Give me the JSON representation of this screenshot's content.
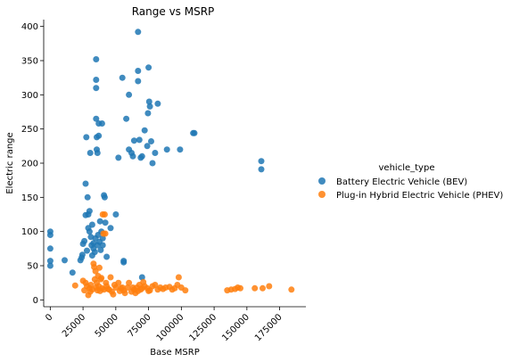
{
  "chart_data": {
    "type": "scatter",
    "title": "Range vs MSRP",
    "xlabel": "Base MSRP",
    "ylabel": "Electric range",
    "xlim": [
      -5000,
      195000
    ],
    "ylim": [
      -10,
      410
    ],
    "xticks": [
      0,
      25000,
      50000,
      75000,
      100000,
      125000,
      150000,
      175000
    ],
    "yticks": [
      0,
      50,
      100,
      150,
      200,
      250,
      300,
      350,
      400
    ],
    "grid": false,
    "legend": {
      "title": "vehicle_type",
      "placement": "right"
    },
    "series": [
      {
        "name": "Battery Electric Vehicle (BEV)",
        "color": "#1f77b4",
        "points": [
          [
            0,
            50
          ],
          [
            0,
            57
          ],
          [
            0,
            75
          ],
          [
            0,
            95
          ],
          [
            0,
            100
          ],
          [
            11000,
            58
          ],
          [
            17000,
            40
          ],
          [
            23000,
            58
          ],
          [
            24000,
            62
          ],
          [
            24500,
            66
          ],
          [
            25000,
            82
          ],
          [
            26000,
            86
          ],
          [
            27000,
            124
          ],
          [
            27000,
            170
          ],
          [
            27500,
            238
          ],
          [
            28000,
            72
          ],
          [
            28500,
            150
          ],
          [
            29000,
            105
          ],
          [
            29000,
            125
          ],
          [
            30000,
            100
          ],
          [
            30000,
            130
          ],
          [
            30500,
            215
          ],
          [
            31000,
            92
          ],
          [
            31500,
            80
          ],
          [
            32000,
            110
          ],
          [
            32000,
            65
          ],
          [
            33000,
            75
          ],
          [
            33000,
            83
          ],
          [
            34000,
            70
          ],
          [
            34500,
            90
          ],
          [
            35000,
            352
          ],
          [
            35000,
            322
          ],
          [
            35000,
            310
          ],
          [
            35000,
            265
          ],
          [
            35500,
            238
          ],
          [
            35500,
            220
          ],
          [
            36000,
            215
          ],
          [
            36000,
            80
          ],
          [
            36500,
            95
          ],
          [
            37000,
            258
          ],
          [
            37000,
            240
          ],
          [
            37500,
            85
          ],
          [
            38000,
            115
          ],
          [
            38500,
            73
          ],
          [
            39000,
            100
          ],
          [
            39500,
            258
          ],
          [
            40000,
            90
          ],
          [
            40000,
            80
          ],
          [
            41000,
            153
          ],
          [
            41500,
            150
          ],
          [
            42000,
            113
          ],
          [
            43000,
            63
          ],
          [
            46000,
            105
          ],
          [
            50000,
            125
          ],
          [
            52000,
            208
          ],
          [
            55000,
            325
          ],
          [
            56000,
            57
          ],
          [
            56000,
            55
          ],
          [
            58000,
            265
          ],
          [
            60000,
            220
          ],
          [
            60000,
            300
          ],
          [
            62000,
            215
          ],
          [
            63000,
            210
          ],
          [
            64000,
            233
          ],
          [
            67000,
            392
          ],
          [
            67000,
            335
          ],
          [
            67000,
            320
          ],
          [
            68000,
            234
          ],
          [
            69000,
            208
          ],
          [
            70000,
            210
          ],
          [
            70000,
            33
          ],
          [
            72000,
            248
          ],
          [
            74000,
            225
          ],
          [
            74500,
            273
          ],
          [
            75000,
            340
          ],
          [
            75500,
            290
          ],
          [
            76000,
            283
          ],
          [
            77000,
            232
          ],
          [
            78000,
            200
          ],
          [
            80000,
            215
          ],
          [
            82000,
            287
          ],
          [
            89000,
            220
          ],
          [
            99000,
            220
          ],
          [
            109000,
            244
          ],
          [
            110000,
            244
          ],
          [
            161000,
            203
          ],
          [
            161000,
            191
          ]
        ]
      },
      {
        "name": "Plug-in Hybrid Electric Vehicle (PHEV)",
        "color": "#ff7f0e",
        "points": [
          [
            19000,
            21
          ],
          [
            25000,
            28
          ],
          [
            26000,
            14
          ],
          [
            27000,
            25
          ],
          [
            28000,
            20
          ],
          [
            29000,
            7
          ],
          [
            30000,
            17
          ],
          [
            30500,
            12
          ],
          [
            31000,
            22
          ],
          [
            32000,
            15
          ],
          [
            33000,
            53
          ],
          [
            33500,
            48
          ],
          [
            34000,
            30
          ],
          [
            34500,
            42
          ],
          [
            35000,
            18
          ],
          [
            35500,
            25
          ],
          [
            36000,
            14
          ],
          [
            36500,
            35
          ],
          [
            37000,
            20
          ],
          [
            37500,
            47
          ],
          [
            38000,
            13
          ],
          [
            38500,
            30
          ],
          [
            39000,
            32
          ],
          [
            39500,
            17
          ],
          [
            40000,
            125
          ],
          [
            40500,
            97
          ],
          [
            41000,
            15
          ],
          [
            41500,
            125
          ],
          [
            42000,
            97
          ],
          [
            42500,
            25
          ],
          [
            43000,
            20
          ],
          [
            44000,
            16
          ],
          [
            45000,
            15
          ],
          [
            46000,
            33
          ],
          [
            47000,
            12
          ],
          [
            48000,
            8
          ],
          [
            49000,
            22
          ],
          [
            50000,
            18
          ],
          [
            52000,
            25
          ],
          [
            53000,
            13
          ],
          [
            54000,
            17
          ],
          [
            55000,
            18
          ],
          [
            56000,
            14
          ],
          [
            57000,
            10
          ],
          [
            59000,
            18
          ],
          [
            60000,
            25
          ],
          [
            62000,
            12
          ],
          [
            63000,
            18
          ],
          [
            64000,
            15
          ],
          [
            65000,
            10
          ],
          [
            66000,
            18
          ],
          [
            67000,
            13
          ],
          [
            68000,
            22
          ],
          [
            69000,
            15
          ],
          [
            70000,
            17
          ],
          [
            71000,
            26
          ],
          [
            72000,
            20
          ],
          [
            74000,
            17
          ],
          [
            75000,
            13
          ],
          [
            76000,
            14
          ],
          [
            78000,
            20
          ],
          [
            80000,
            22
          ],
          [
            82000,
            15
          ],
          [
            84000,
            18
          ],
          [
            86000,
            16
          ],
          [
            88000,
            18
          ],
          [
            91000,
            19
          ],
          [
            93000,
            15
          ],
          [
            95000,
            17
          ],
          [
            97000,
            22
          ],
          [
            98000,
            33
          ],
          [
            100000,
            18
          ],
          [
            103000,
            14
          ],
          [
            135000,
            14
          ],
          [
            138000,
            15
          ],
          [
            141000,
            16
          ],
          [
            143000,
            18
          ],
          [
            145000,
            17
          ],
          [
            156000,
            17
          ],
          [
            162000,
            17
          ],
          [
            167000,
            20
          ],
          [
            184000,
            15
          ]
        ]
      }
    ]
  }
}
